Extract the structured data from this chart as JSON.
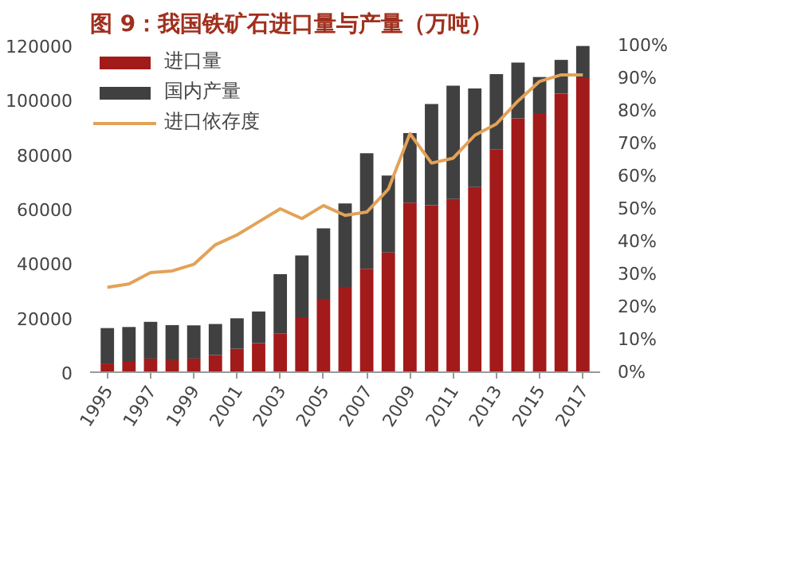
{
  "chart_data": {
    "type": "bar",
    "title": "图 9：我国铁矿石进口量与产量（万吨）",
    "stacked": true,
    "legend": "top left",
    "grid": false,
    "categories": [
      "1995",
      null,
      "1997",
      null,
      "1999",
      null,
      "2001",
      null,
      "2003",
      null,
      "2005",
      null,
      "2007",
      null,
      "2009",
      null,
      "2011",
      null,
      "2013",
      null,
      "2015",
      null,
      "2017"
    ],
    "series": [
      {
        "name": "进口量",
        "color": "#a31a1a",
        "values": [
          3200,
          3800,
          5000,
          4400,
          5000,
          6300,
          8600,
          10700,
          14100,
          20200,
          26900,
          31300,
          38000,
          44000,
          62300,
          61300,
          63600,
          68000,
          81700,
          93200,
          95100,
          102300,
          108000
        ]
      },
      {
        "name": "国内产量",
        "color": "#404040",
        "values": [
          13000,
          12800,
          13500,
          12900,
          12200,
          11400,
          11200,
          11600,
          21900,
          22700,
          25900,
          30700,
          42400,
          28200,
          25500,
          37200,
          41600,
          36200,
          27800,
          20500,
          13300,
          12400,
          11800
        ]
      },
      {
        "name": "进口依存度",
        "color": "#e3a258",
        "type": "line",
        "axis": "y2",
        "values": [
          26,
          27,
          30.5,
          31,
          33,
          39,
          42,
          46,
          50,
          47,
          51,
          48,
          49,
          56,
          73,
          64,
          65.5,
          72.5,
          76,
          83,
          89,
          91,
          91
        ]
      }
    ],
    "ylim": [
      0,
      120000
    ],
    "yticks": [
      0,
      20000,
      40000,
      60000,
      80000,
      100000,
      120000
    ],
    "y2lim": [
      0,
      100
    ],
    "y2ticks": [
      {
        "value": 0,
        "label": "0%"
      },
      {
        "value": 10,
        "label": "10%"
      },
      {
        "value": 20,
        "label": "20%"
      },
      {
        "value": 30,
        "label": "30%"
      },
      {
        "value": 40,
        "label": "40%"
      },
      {
        "value": 50,
        "label": "50%"
      },
      {
        "value": 60,
        "label": "60%"
      },
      {
        "value": 70,
        "label": "70%"
      },
      {
        "value": 80,
        "label": "80%"
      },
      {
        "value": 90,
        "label": "90%"
      },
      {
        "value": 100,
        "label": "100%"
      }
    ]
  }
}
